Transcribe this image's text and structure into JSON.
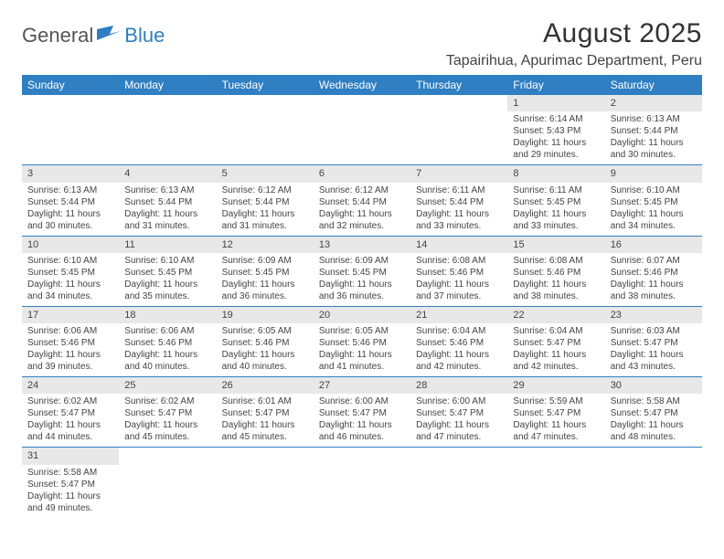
{
  "brand": {
    "part1": "General",
    "part2": "Blue"
  },
  "title": "August 2025",
  "location": "Tapairihua, Apurimac Department, Peru",
  "colors": {
    "header_bg": "#2f7fc2",
    "header_text": "#ffffff",
    "daynum_bg": "#e8e8e8",
    "row_divider": "#2f7fc2",
    "body_text": "#444444",
    "background": "#ffffff"
  },
  "grid": {
    "columns": 7,
    "rows": 6
  },
  "day_headers": [
    "Sunday",
    "Monday",
    "Tuesday",
    "Wednesday",
    "Thursday",
    "Friday",
    "Saturday"
  ],
  "first_day_column": 5,
  "days_in_month": 31,
  "days": {
    "1": {
      "sunrise": "6:14 AM",
      "sunset": "5:43 PM",
      "daylight": "11 hours and 29 minutes."
    },
    "2": {
      "sunrise": "6:13 AM",
      "sunset": "5:44 PM",
      "daylight": "11 hours and 30 minutes."
    },
    "3": {
      "sunrise": "6:13 AM",
      "sunset": "5:44 PM",
      "daylight": "11 hours and 30 minutes."
    },
    "4": {
      "sunrise": "6:13 AM",
      "sunset": "5:44 PM",
      "daylight": "11 hours and 31 minutes."
    },
    "5": {
      "sunrise": "6:12 AM",
      "sunset": "5:44 PM",
      "daylight": "11 hours and 31 minutes."
    },
    "6": {
      "sunrise": "6:12 AM",
      "sunset": "5:44 PM",
      "daylight": "11 hours and 32 minutes."
    },
    "7": {
      "sunrise": "6:11 AM",
      "sunset": "5:44 PM",
      "daylight": "11 hours and 33 minutes."
    },
    "8": {
      "sunrise": "6:11 AM",
      "sunset": "5:45 PM",
      "daylight": "11 hours and 33 minutes."
    },
    "9": {
      "sunrise": "6:10 AM",
      "sunset": "5:45 PM",
      "daylight": "11 hours and 34 minutes."
    },
    "10": {
      "sunrise": "6:10 AM",
      "sunset": "5:45 PM",
      "daylight": "11 hours and 34 minutes."
    },
    "11": {
      "sunrise": "6:10 AM",
      "sunset": "5:45 PM",
      "daylight": "11 hours and 35 minutes."
    },
    "12": {
      "sunrise": "6:09 AM",
      "sunset": "5:45 PM",
      "daylight": "11 hours and 36 minutes."
    },
    "13": {
      "sunrise": "6:09 AM",
      "sunset": "5:45 PM",
      "daylight": "11 hours and 36 minutes."
    },
    "14": {
      "sunrise": "6:08 AM",
      "sunset": "5:46 PM",
      "daylight": "11 hours and 37 minutes."
    },
    "15": {
      "sunrise": "6:08 AM",
      "sunset": "5:46 PM",
      "daylight": "11 hours and 38 minutes."
    },
    "16": {
      "sunrise": "6:07 AM",
      "sunset": "5:46 PM",
      "daylight": "11 hours and 38 minutes."
    },
    "17": {
      "sunrise": "6:06 AM",
      "sunset": "5:46 PM",
      "daylight": "11 hours and 39 minutes."
    },
    "18": {
      "sunrise": "6:06 AM",
      "sunset": "5:46 PM",
      "daylight": "11 hours and 40 minutes."
    },
    "19": {
      "sunrise": "6:05 AM",
      "sunset": "5:46 PM",
      "daylight": "11 hours and 40 minutes."
    },
    "20": {
      "sunrise": "6:05 AM",
      "sunset": "5:46 PM",
      "daylight": "11 hours and 41 minutes."
    },
    "21": {
      "sunrise": "6:04 AM",
      "sunset": "5:46 PM",
      "daylight": "11 hours and 42 minutes."
    },
    "22": {
      "sunrise": "6:04 AM",
      "sunset": "5:47 PM",
      "daylight": "11 hours and 42 minutes."
    },
    "23": {
      "sunrise": "6:03 AM",
      "sunset": "5:47 PM",
      "daylight": "11 hours and 43 minutes."
    },
    "24": {
      "sunrise": "6:02 AM",
      "sunset": "5:47 PM",
      "daylight": "11 hours and 44 minutes."
    },
    "25": {
      "sunrise": "6:02 AM",
      "sunset": "5:47 PM",
      "daylight": "11 hours and 45 minutes."
    },
    "26": {
      "sunrise": "6:01 AM",
      "sunset": "5:47 PM",
      "daylight": "11 hours and 45 minutes."
    },
    "27": {
      "sunrise": "6:00 AM",
      "sunset": "5:47 PM",
      "daylight": "11 hours and 46 minutes."
    },
    "28": {
      "sunrise": "6:00 AM",
      "sunset": "5:47 PM",
      "daylight": "11 hours and 47 minutes."
    },
    "29": {
      "sunrise": "5:59 AM",
      "sunset": "5:47 PM",
      "daylight": "11 hours and 47 minutes."
    },
    "30": {
      "sunrise": "5:58 AM",
      "sunset": "5:47 PM",
      "daylight": "11 hours and 48 minutes."
    },
    "31": {
      "sunrise": "5:58 AM",
      "sunset": "5:47 PM",
      "daylight": "11 hours and 49 minutes."
    }
  },
  "labels": {
    "sunrise": "Sunrise:",
    "sunset": "Sunset:",
    "daylight": "Daylight:"
  }
}
